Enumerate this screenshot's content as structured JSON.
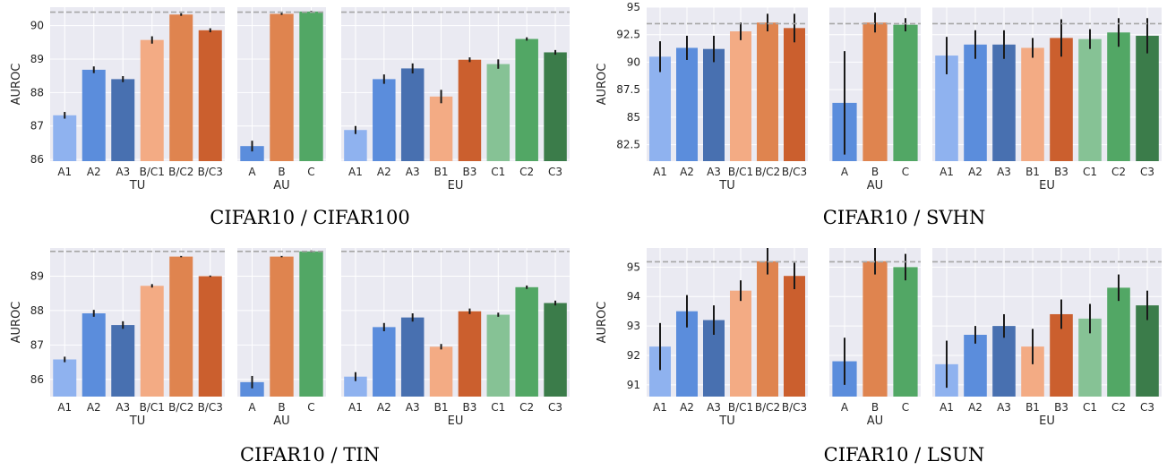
{
  "colors": {
    "A1": "#8fb2ef",
    "A2": "#5b8ddc",
    "A3": "#4870b0",
    "B1": "#f3ab84",
    "B2": "#df844f",
    "B3": "#cb5f2e",
    "C1": "#86c295",
    "C2": "#52a765",
    "C3": "#3b7c4a",
    "background": "#eaeaf2",
    "grid": "#ffffff",
    "reference_line": "#a6a6a6",
    "error_bar": "#1a1a1a"
  },
  "chart_data": [
    {
      "type": "bar",
      "caption": "CIFAR10 / CIFAR100",
      "ylabel": "AUROC",
      "reference": 90.4,
      "grid": true,
      "panels": [
        {
          "group": "TU",
          "ylim": [
            85.95,
            90.55
          ],
          "yticks": [
            86,
            87,
            88,
            89,
            90
          ],
          "categories": [
            "A1",
            "A2",
            "A3",
            "B/C1",
            "B/C2",
            "B/C3"
          ],
          "color_keys": [
            "A1",
            "A2",
            "A3",
            "B1",
            "B2",
            "B3"
          ],
          "values": [
            87.32,
            88.68,
            88.4,
            89.57,
            90.33,
            89.86
          ],
          "errors": [
            0.1,
            0.1,
            0.09,
            0.11,
            0.04,
            0.06
          ]
        },
        {
          "group": "AU",
          "ylim": [
            85.95,
            90.55
          ],
          "categories": [
            "A",
            "B",
            "C"
          ],
          "color_keys": [
            "A2",
            "B2",
            "C2"
          ],
          "values": [
            86.4,
            90.35,
            90.42
          ],
          "errors": [
            0.16,
            0.03,
            0.02
          ]
        },
        {
          "group": "EU",
          "ylim": [
            85.95,
            90.55
          ],
          "categories": [
            "A1",
            "A2",
            "A3",
            "B1",
            "B3",
            "C1",
            "C2",
            "C3"
          ],
          "color_keys": [
            "A1",
            "A2",
            "A3",
            "B1",
            "B3",
            "C1",
            "C2",
            "C3"
          ],
          "values": [
            86.88,
            88.4,
            88.72,
            87.88,
            88.98,
            88.85,
            89.6,
            89.2
          ],
          "errors": [
            0.12,
            0.14,
            0.15,
            0.2,
            0.07,
            0.14,
            0.05,
            0.07
          ]
        }
      ]
    },
    {
      "type": "bar",
      "caption": "CIFAR10 / SVHN",
      "ylabel": "AUROC",
      "reference": 93.5,
      "grid": true,
      "panels": [
        {
          "group": "TU",
          "ylim": [
            81.0,
            95.0
          ],
          "yticks": [
            82.5,
            85.0,
            87.5,
            90.0,
            92.5,
            95.0
          ],
          "categories": [
            "A1",
            "A2",
            "A3",
            "B/C1",
            "B/C2",
            "B/C3"
          ],
          "color_keys": [
            "A1",
            "A2",
            "A3",
            "B1",
            "B2",
            "B3"
          ],
          "values": [
            90.5,
            91.3,
            91.2,
            92.8,
            93.6,
            93.1
          ],
          "errors": [
            1.4,
            1.1,
            1.2,
            0.8,
            0.8,
            1.3
          ]
        },
        {
          "group": "AU",
          "ylim": [
            81.0,
            95.0
          ],
          "categories": [
            "A",
            "B",
            "C"
          ],
          "color_keys": [
            "A2",
            "B2",
            "C2"
          ],
          "values": [
            86.3,
            93.6,
            93.4
          ],
          "errors": [
            4.7,
            0.9,
            0.6
          ]
        },
        {
          "group": "EU",
          "ylim": [
            81.0,
            95.0
          ],
          "categories": [
            "A1",
            "A2",
            "A3",
            "B1",
            "B3",
            "C1",
            "C2",
            "C3"
          ],
          "color_keys": [
            "A1",
            "A2",
            "A3",
            "B1",
            "B3",
            "C1",
            "C2",
            "C3"
          ],
          "values": [
            90.6,
            91.6,
            91.6,
            91.3,
            92.2,
            92.1,
            92.7,
            92.4
          ],
          "errors": [
            1.7,
            1.3,
            1.3,
            0.9,
            1.7,
            0.9,
            1.3,
            1.6
          ]
        }
      ]
    },
    {
      "type": "bar",
      "caption": "CIFAR10 / TIN",
      "ylabel": "AUROC",
      "reference": 89.72,
      "grid": true,
      "panels": [
        {
          "group": "TU",
          "ylim": [
            85.5,
            89.82
          ],
          "yticks": [
            86,
            87,
            88,
            89
          ],
          "categories": [
            "A1",
            "A2",
            "A3",
            "B/C1",
            "B/C2",
            "B/C3"
          ],
          "color_keys": [
            "A1",
            "A2",
            "A3",
            "B1",
            "B2",
            "B3"
          ],
          "values": [
            86.58,
            87.92,
            87.58,
            88.72,
            89.57,
            89.0
          ],
          "errors": [
            0.08,
            0.1,
            0.11,
            0.05,
            0.02,
            0.02
          ]
        },
        {
          "group": "AU",
          "ylim": [
            85.5,
            89.82
          ],
          "categories": [
            "A",
            "B",
            "C"
          ],
          "color_keys": [
            "A2",
            "B2",
            "C2"
          ],
          "values": [
            85.92,
            89.57,
            89.72
          ],
          "errors": [
            0.18,
            0.02,
            0.03
          ]
        },
        {
          "group": "EU",
          "ylim": [
            85.5,
            89.82
          ],
          "categories": [
            "A1",
            "A2",
            "A3",
            "B1",
            "B3",
            "C1",
            "C2",
            "C3"
          ],
          "color_keys": [
            "A1",
            "A2",
            "A3",
            "B1",
            "B3",
            "C1",
            "C2",
            "C3"
          ],
          "values": [
            86.08,
            87.52,
            87.8,
            86.95,
            87.98,
            87.88,
            88.68,
            88.22
          ],
          "errors": [
            0.13,
            0.12,
            0.12,
            0.08,
            0.08,
            0.06,
            0.05,
            0.07
          ]
        }
      ]
    },
    {
      "type": "bar",
      "caption": "CIFAR10 / LSUN",
      "ylabel": "AUROC",
      "reference": 95.18,
      "grid": true,
      "panels": [
        {
          "group": "TU",
          "ylim": [
            90.6,
            95.65
          ],
          "yticks": [
            91,
            92,
            93,
            94,
            95
          ],
          "categories": [
            "A1",
            "A2",
            "A3",
            "B/C1",
            "B/C2",
            "B/C3"
          ],
          "color_keys": [
            "A1",
            "A2",
            "A3",
            "B1",
            "B2",
            "B3"
          ],
          "values": [
            92.3,
            93.5,
            93.2,
            94.2,
            95.2,
            94.7
          ],
          "errors": [
            0.8,
            0.55,
            0.5,
            0.35,
            0.45,
            0.45
          ]
        },
        {
          "group": "AU",
          "ylim": [
            90.6,
            95.65
          ],
          "categories": [
            "A",
            "B",
            "C"
          ],
          "color_keys": [
            "A2",
            "B2",
            "C2"
          ],
          "values": [
            91.8,
            95.2,
            95.0
          ],
          "errors": [
            0.8,
            0.45,
            0.45
          ]
        },
        {
          "group": "EU",
          "ylim": [
            90.6,
            95.65
          ],
          "categories": [
            "A1",
            "A2",
            "A3",
            "B1",
            "B3",
            "C1",
            "C2",
            "C3"
          ],
          "color_keys": [
            "A1",
            "A2",
            "A3",
            "B1",
            "B3",
            "C1",
            "C2",
            "C3"
          ],
          "values": [
            91.7,
            92.7,
            93.0,
            92.3,
            93.4,
            93.25,
            94.3,
            93.7
          ],
          "errors": [
            0.8,
            0.3,
            0.4,
            0.6,
            0.5,
            0.5,
            0.45,
            0.5
          ]
        }
      ]
    }
  ]
}
